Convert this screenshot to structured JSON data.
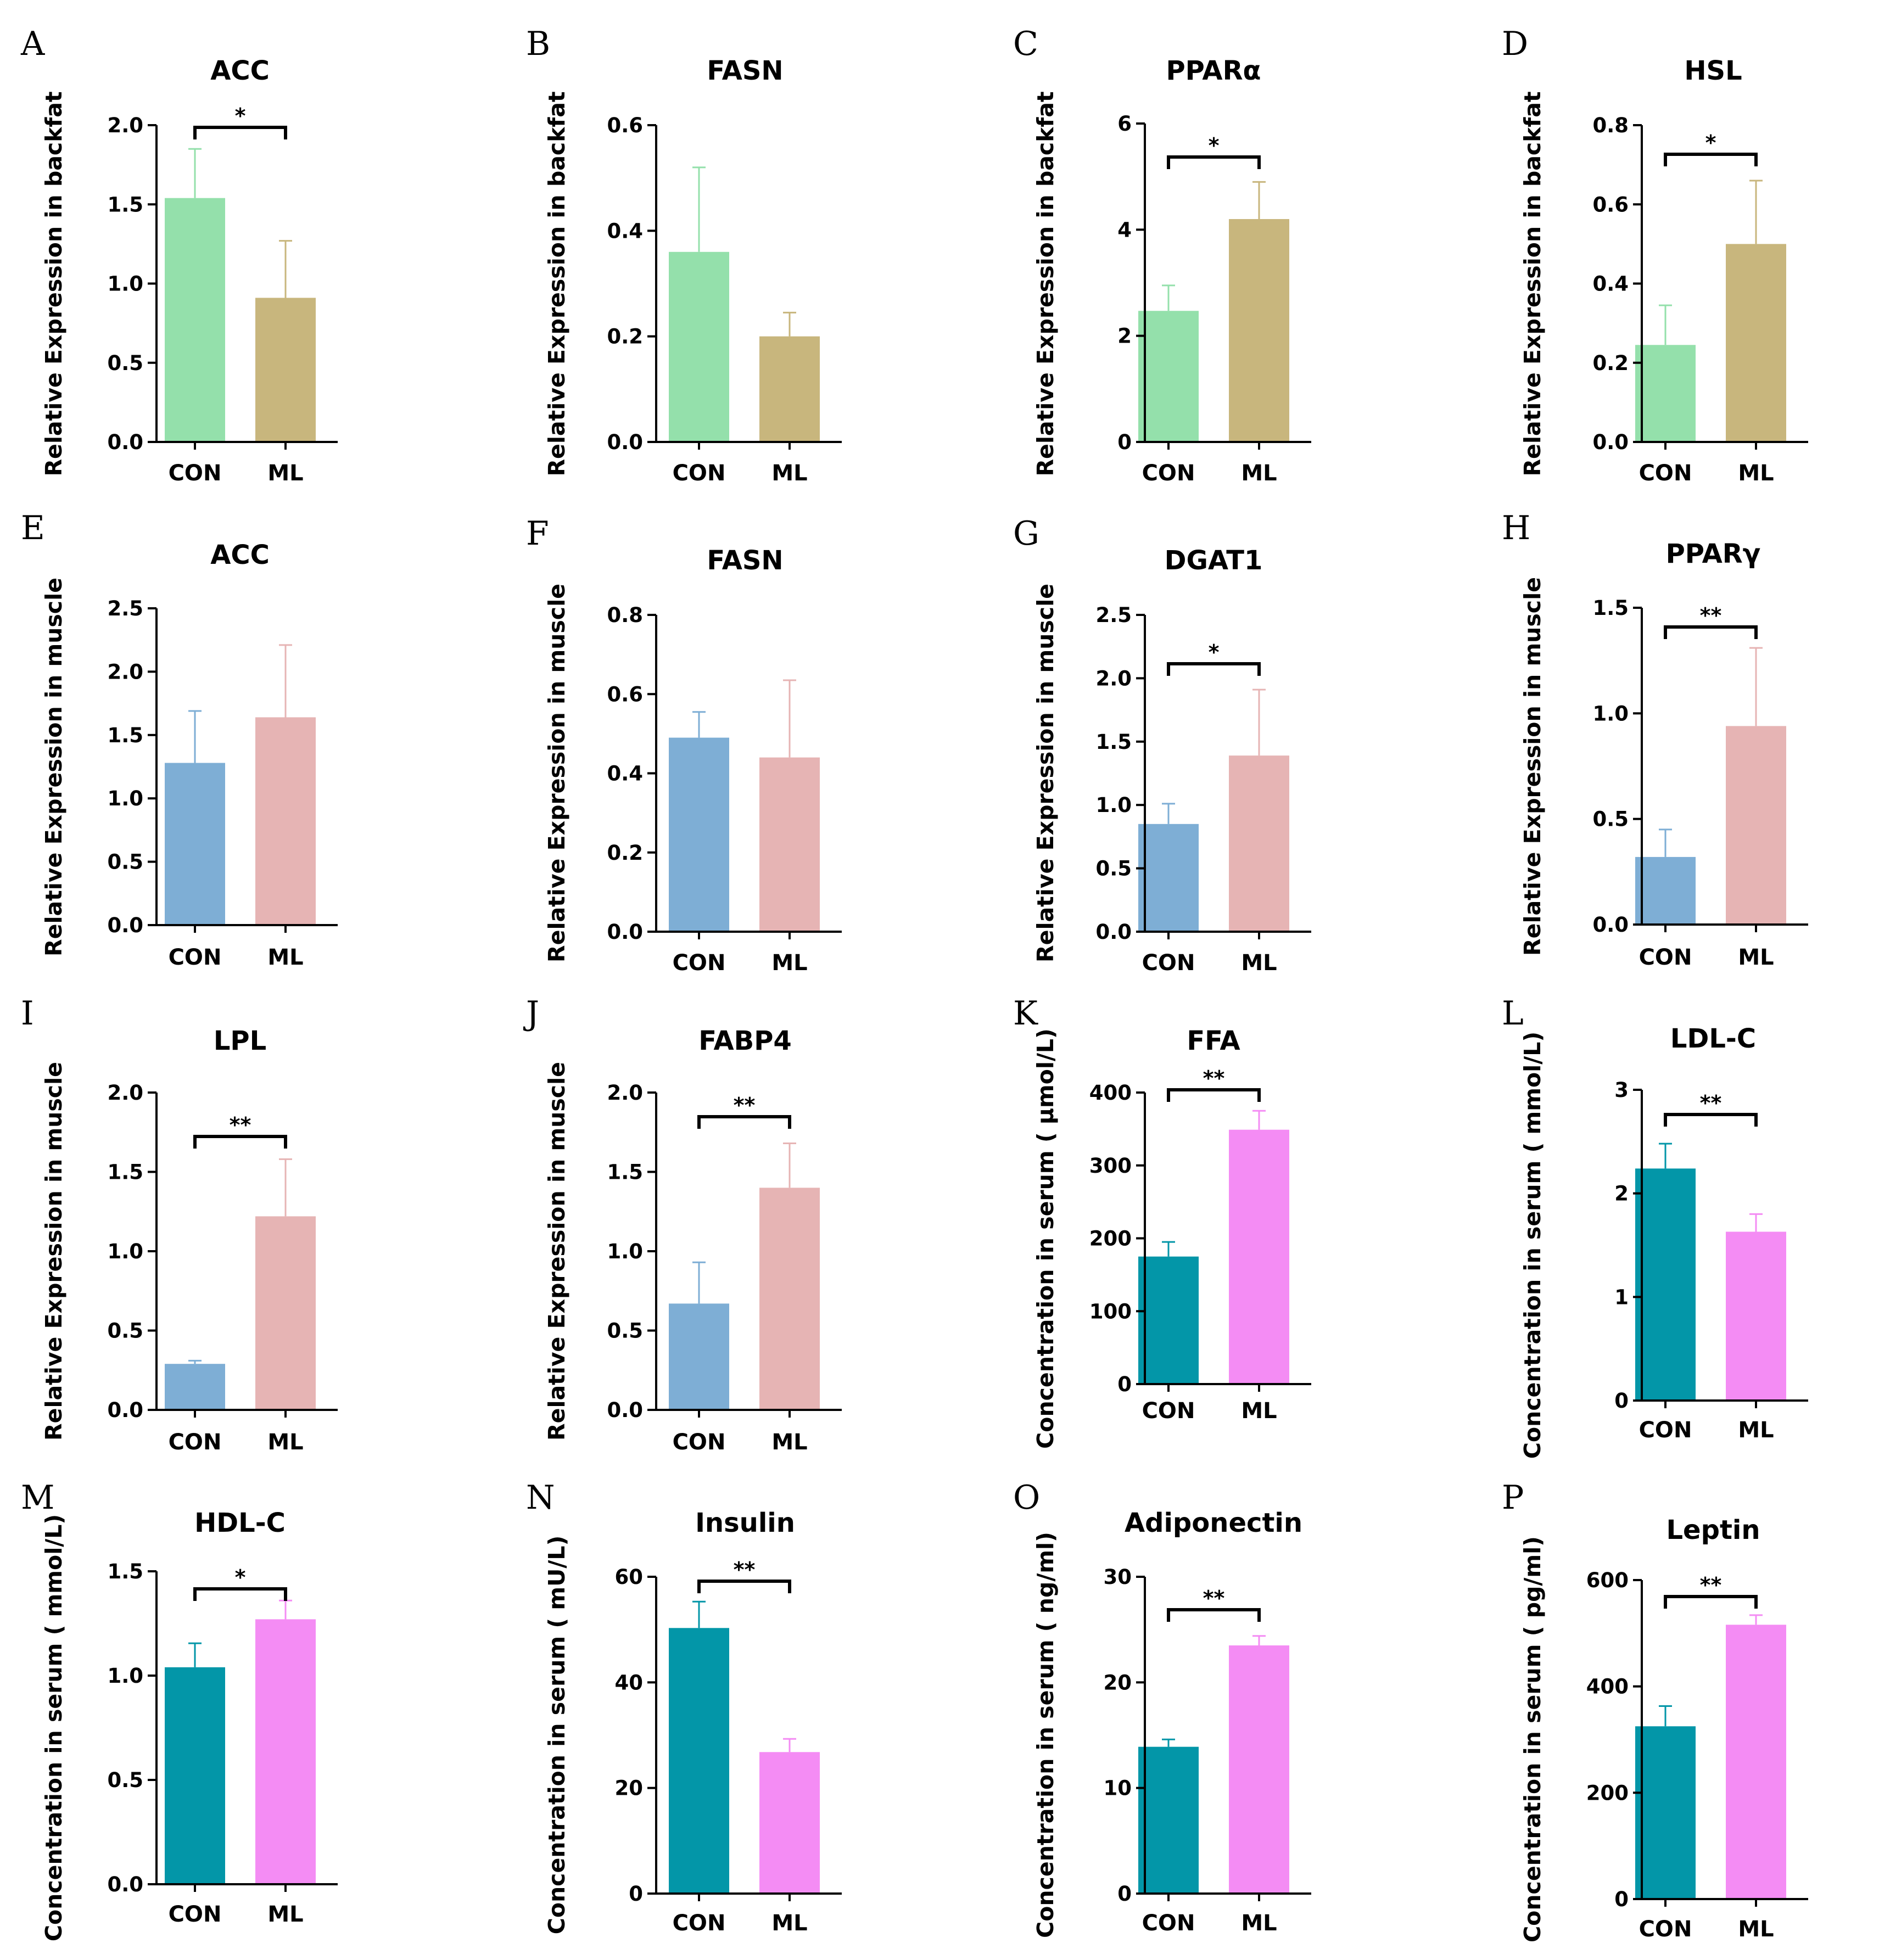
{
  "chart_data": [
    {
      "panel": "A",
      "type": "bar",
      "title": "ACC",
      "ylabel": "Relative Expression in backfat",
      "categories": [
        "CON",
        "ML"
      ],
      "values": [
        1.54,
        0.91
      ],
      "errors": [
        0.31,
        0.36
      ],
      "colors": [
        "#94e0ab",
        "#c8b67d"
      ],
      "ylim": [
        0,
        2.0
      ],
      "yticks": [
        "0.0",
        "0.5",
        "1.0",
        "1.5",
        "2.0"
      ],
      "significance": "*"
    },
    {
      "panel": "B",
      "type": "bar",
      "title": "FASN",
      "ylabel": "Relative Expression in backfat",
      "categories": [
        "CON",
        "ML"
      ],
      "values": [
        0.36,
        0.2
      ],
      "errors": [
        0.16,
        0.045
      ],
      "colors": [
        "#94e0ab",
        "#c8b67d"
      ],
      "ylim": [
        0,
        0.6
      ],
      "yticks": [
        "0.0",
        "0.2",
        "0.4",
        "0.6"
      ],
      "significance": ""
    },
    {
      "panel": "C",
      "type": "bar",
      "title": "PPARα",
      "ylabel": "Relative Expression in backfat",
      "categories": [
        "CON",
        "ML"
      ],
      "values": [
        2.47,
        4.2
      ],
      "errors": [
        0.48,
        0.7
      ],
      "colors": [
        "#94e0ab",
        "#c8b67d"
      ],
      "ylim": [
        0,
        6
      ],
      "yticks": [
        "0",
        "2",
        "4",
        "6"
      ],
      "significance": "*"
    },
    {
      "panel": "D",
      "type": "bar",
      "title": "HSL",
      "ylabel": "Relative Expression in backfat",
      "categories": [
        "CON",
        "ML"
      ],
      "values": [
        0.245,
        0.5
      ],
      "errors": [
        0.1,
        0.16
      ],
      "colors": [
        "#94e0ab",
        "#c8b67d"
      ],
      "ylim": [
        0,
        0.8
      ],
      "yticks": [
        "0.0",
        "0.2",
        "0.4",
        "0.6",
        "0.8"
      ],
      "significance": "*"
    },
    {
      "panel": "E",
      "type": "bar",
      "title": "ACC",
      "ylabel": "Relative Expression in muscle",
      "categories": [
        "CON",
        "ML"
      ],
      "values": [
        1.28,
        1.64
      ],
      "errors": [
        0.41,
        0.57
      ],
      "colors": [
        "#7eaed5",
        "#e6b4b4"
      ],
      "ylim": [
        0,
        2.5
      ],
      "yticks": [
        "0.0",
        "0.5",
        "1.0",
        "1.5",
        "2.0",
        "2.5"
      ],
      "significance": ""
    },
    {
      "panel": "F",
      "type": "bar",
      "title": "FASN",
      "ylabel": "Relative Expression in muscle",
      "categories": [
        "CON",
        "ML"
      ],
      "values": [
        0.49,
        0.44
      ],
      "errors": [
        0.065,
        0.195
      ],
      "colors": [
        "#7eaed5",
        "#e6b4b4"
      ],
      "ylim": [
        0,
        0.8
      ],
      "yticks": [
        "0.0",
        "0.2",
        "0.4",
        "0.6",
        "0.8"
      ],
      "significance": ""
    },
    {
      "panel": "G",
      "type": "bar",
      "title": "DGAT1",
      "ylabel": "Relative Expression in muscle",
      "categories": [
        "CON",
        "ML"
      ],
      "values": [
        0.85,
        1.39
      ],
      "errors": [
        0.16,
        0.52
      ],
      "colors": [
        "#7eaed5",
        "#e6b4b4"
      ],
      "ylim": [
        0,
        2.5
      ],
      "yticks": [
        "0.0",
        "0.5",
        "1.0",
        "1.5",
        "2.0",
        "2.5"
      ],
      "significance": "*"
    },
    {
      "panel": "H",
      "type": "bar",
      "title": "PPARγ",
      "ylabel": "Relative Expression in muscle",
      "categories": [
        "CON",
        "ML"
      ],
      "values": [
        0.32,
        0.94
      ],
      "errors": [
        0.13,
        0.37
      ],
      "colors": [
        "#7eaed5",
        "#e6b4b4"
      ],
      "ylim": [
        0,
        1.5
      ],
      "yticks": [
        "0.0",
        "0.5",
        "1.0",
        "1.5"
      ],
      "significance": "**"
    },
    {
      "panel": "I",
      "type": "bar",
      "title": "LPL",
      "ylabel": "Relative Expression in muscle",
      "categories": [
        "CON",
        "ML"
      ],
      "values": [
        0.29,
        1.22
      ],
      "errors": [
        0.02,
        0.36
      ],
      "colors": [
        "#7eaed5",
        "#e6b4b4"
      ],
      "ylim": [
        0,
        2.0
      ],
      "yticks": [
        "0.0",
        "0.5",
        "1.0",
        "1.5",
        "2.0"
      ],
      "significance": "**"
    },
    {
      "panel": "J",
      "type": "bar",
      "title": "FABP4",
      "ylabel": "Relative Expression in muscle",
      "categories": [
        "CON",
        "ML"
      ],
      "values": [
        0.67,
        1.4
      ],
      "errors": [
        0.26,
        0.28
      ],
      "colors": [
        "#7eaed5",
        "#e6b4b4"
      ],
      "ylim": [
        0,
        2.0
      ],
      "yticks": [
        "0.0",
        "0.5",
        "1.0",
        "1.5",
        "2.0"
      ],
      "significance": "**"
    },
    {
      "panel": "K",
      "type": "bar",
      "title": "FFA",
      "ylabel": "Concentration in serum ( μmol/L)",
      "categories": [
        "CON",
        "ML"
      ],
      "values": [
        175,
        349
      ],
      "errors": [
        20,
        26
      ],
      "colors": [
        "#0396a8",
        "#f48cf4"
      ],
      "ylim": [
        0,
        400
      ],
      "yticks": [
        "0",
        "100",
        "200",
        "300",
        "400"
      ],
      "significance": "**"
    },
    {
      "panel": "L",
      "type": "bar",
      "title": "LDL-C",
      "ylabel": "Concentration in serum ( mmol/L)",
      "categories": [
        "CON",
        "ML"
      ],
      "values": [
        2.24,
        1.63
      ],
      "errors": [
        0.24,
        0.17
      ],
      "colors": [
        "#0396a8",
        "#f48cf4"
      ],
      "ylim": [
        0,
        3
      ],
      "yticks": [
        "0",
        "1",
        "2",
        "3"
      ],
      "significance": "**"
    },
    {
      "panel": "M",
      "type": "bar",
      "title": "HDL-C",
      "ylabel": "Concentration in serum ( mmol/L)",
      "categories": [
        "CON",
        "ML"
      ],
      "values": [
        1.04,
        1.27
      ],
      "errors": [
        0.115,
        0.09
      ],
      "colors": [
        "#0396a8",
        "#f48cf4"
      ],
      "ylim": [
        0,
        1.5
      ],
      "yticks": [
        "0.0",
        "0.5",
        "1.0",
        "1.5"
      ],
      "significance": "*"
    },
    {
      "panel": "N",
      "type": "bar",
      "title": "Insulin",
      "ylabel": "Concentration in serum ( mU/L)",
      "categories": [
        "CON",
        "ML"
      ],
      "values": [
        50.3,
        26.8
      ],
      "errors": [
        5.0,
        2.5
      ],
      "colors": [
        "#0396a8",
        "#f48cf4"
      ],
      "ylim": [
        0,
        60
      ],
      "yticks": [
        "0",
        "20",
        "40",
        "60"
      ],
      "significance": "**"
    },
    {
      "panel": "O",
      "type": "bar",
      "title": "Adiponectin",
      "ylabel": "Concentration in serum ( ng/ml)",
      "categories": [
        "CON",
        "ML"
      ],
      "values": [
        13.9,
        23.5
      ],
      "errors": [
        0.7,
        0.9
      ],
      "colors": [
        "#0396a8",
        "#f48cf4"
      ],
      "ylim": [
        0,
        30
      ],
      "yticks": [
        "0",
        "10",
        "20",
        "30"
      ],
      "significance": "**"
    },
    {
      "panel": "P",
      "type": "bar",
      "title": "Leptin",
      "ylabel": "Concentration in serum ( pg/ml)",
      "categories": [
        "CON",
        "ML"
      ],
      "values": [
        325,
        516
      ],
      "errors": [
        38,
        18
      ],
      "colors": [
        "#0396a8",
        "#f48cf4"
      ],
      "ylim": [
        0,
        600
      ],
      "yticks": [
        "0",
        "200",
        "400",
        "600"
      ],
      "significance": "**"
    }
  ]
}
